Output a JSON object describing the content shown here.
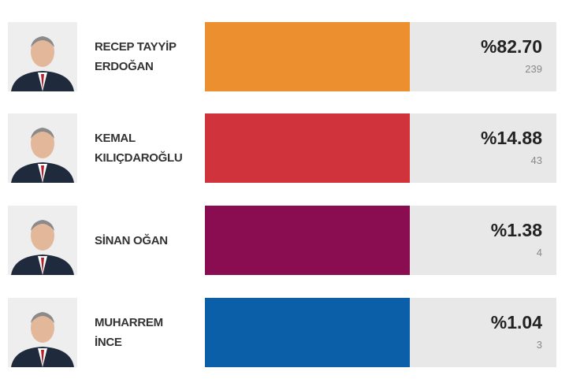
{
  "candidates": [
    {
      "name_lines": [
        "RECEP TAYYİP",
        "ERDOĞAN"
      ],
      "percent": "%82.70",
      "votes": 239,
      "color": "#ec8f2e"
    },
    {
      "name_lines": [
        "KEMAL",
        "KILIÇDAROĞLU"
      ],
      "percent": "%14.88",
      "votes": 43,
      "color": "#d1333d"
    },
    {
      "name_lines": [
        "SİNAN OĞAN"
      ],
      "percent": "%1.38",
      "votes": 4,
      "color": "#8a0d52"
    },
    {
      "name_lines": [
        "MUHARREM",
        "İNCE"
      ],
      "percent": "%1.04",
      "votes": 3,
      "color": "#0b5ea8"
    }
  ]
}
